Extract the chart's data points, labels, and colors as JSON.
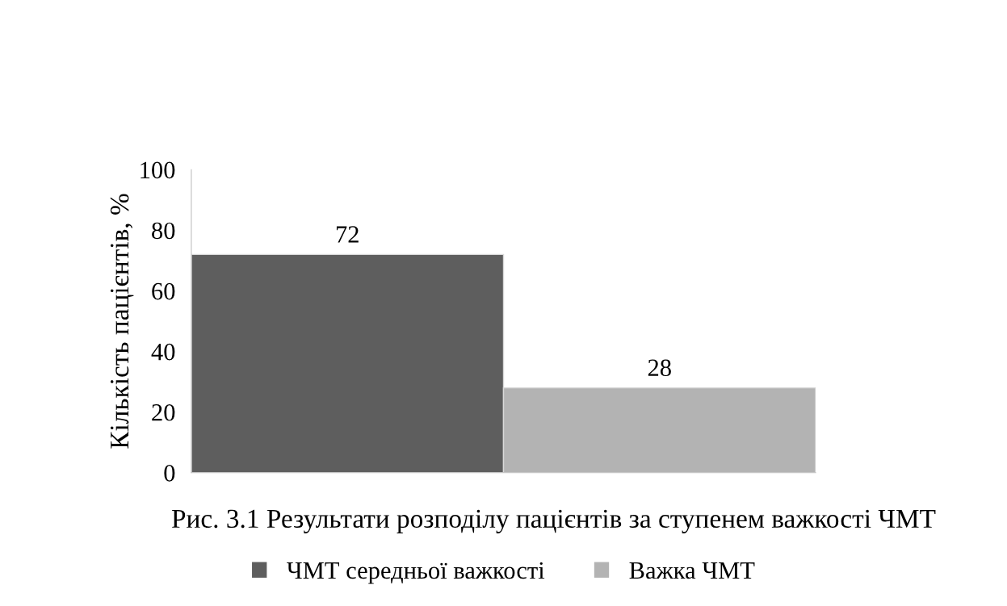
{
  "chart_data": {
    "type": "bar",
    "ylabel": "Кількість пацієнтів, %",
    "categories": [
      null,
      null
    ],
    "series": [
      {
        "name": "ЧМТ середньої важкості",
        "color": "#5e5e5e",
        "values": [
          72,
          null
        ]
      },
      {
        "name": "Важка ЧМТ",
        "color": "#b3b3b3",
        "values": [
          null,
          28
        ]
      }
    ],
    "ylim": [
      0,
      100
    ],
    "yticks": [
      0,
      20,
      40,
      60,
      80,
      100
    ],
    "data_labels": true,
    "legend": "bottom",
    "grid": false,
    "annotations": [
      "Рис. 3.1 Результати розподілу пацієнтів за ступенем важкості ЧМТ"
    ]
  }
}
